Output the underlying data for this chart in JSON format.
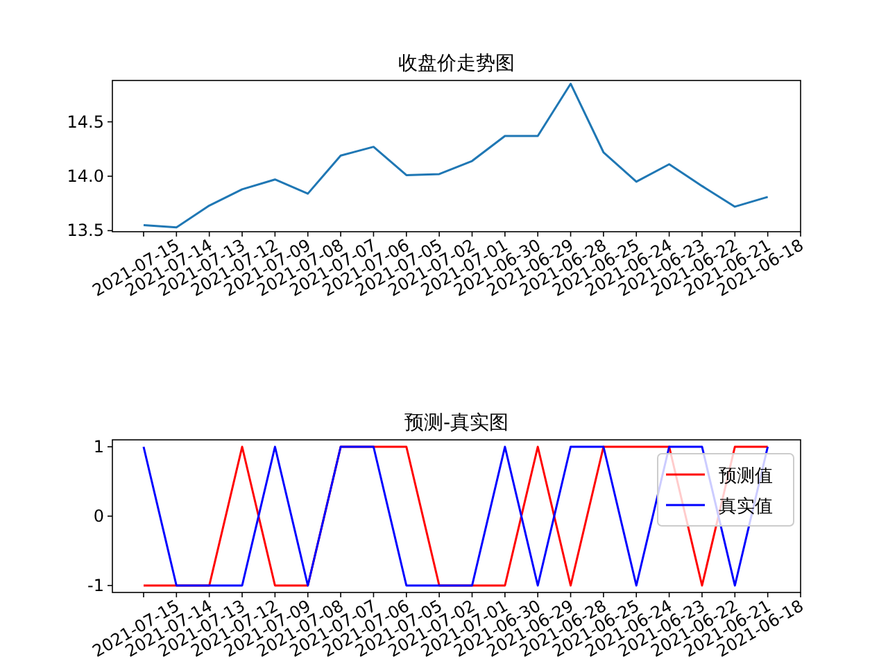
{
  "chart_data": [
    {
      "type": "line",
      "title": "收盘价走势图",
      "categories": [
        "2021-07-15",
        "2021-07-14",
        "2021-07-13",
        "2021-07-12",
        "2021-07-09",
        "2021-07-08",
        "2021-07-07",
        "2021-07-06",
        "2021-07-05",
        "2021-07-02",
        "2021-07-01",
        "2021-06-30",
        "2021-06-29",
        "2021-06-28",
        "2021-06-25",
        "2021-06-24",
        "2021-06-23",
        "2021-06-22",
        "2021-06-21",
        "2021-06-18"
      ],
      "series": [
        {
          "color": "#1f77b4",
          "values": [
            13.55,
            13.53,
            13.73,
            13.88,
            13.97,
            13.84,
            14.19,
            14.27,
            14.01,
            14.02,
            14.14,
            14.37,
            14.37,
            14.85,
            14.22,
            13.95,
            14.11,
            13.91,
            13.72,
            13.81
          ]
        }
      ],
      "ylim": [
        13.49,
        14.88
      ],
      "yticks": [
        {
          "value": 13.5,
          "label": "13.5"
        },
        {
          "value": 14.0,
          "label": "14.0"
        },
        {
          "value": 14.5,
          "label": "14.5"
        }
      ],
      "grid": false,
      "legend": false
    },
    {
      "type": "line",
      "title": "预测-真实图",
      "categories": [
        "2021-07-15",
        "2021-07-14",
        "2021-07-13",
        "2021-07-12",
        "2021-07-09",
        "2021-07-08",
        "2021-07-07",
        "2021-07-06",
        "2021-07-05",
        "2021-07-02",
        "2021-07-01",
        "2021-06-30",
        "2021-06-29",
        "2021-06-28",
        "2021-06-25",
        "2021-06-24",
        "2021-06-23",
        "2021-06-22",
        "2021-06-21",
        "2021-06-18"
      ],
      "series": [
        {
          "name": "预测值",
          "color": "#ff0000",
          "values": [
            -1,
            -1,
            -1,
            1,
            -1,
            -1,
            1,
            1,
            1,
            -1,
            -1,
            -1,
            1,
            -1,
            1,
            1,
            1,
            -1,
            1,
            1
          ]
        },
        {
          "name": "真实值",
          "color": "#0000ff",
          "values": [
            1,
            -1,
            -1,
            -1,
            1,
            -1,
            1,
            1,
            -1,
            -1,
            -1,
            1,
            -1,
            1,
            1,
            -1,
            1,
            1,
            -1,
            1
          ]
        }
      ],
      "ylim": [
        -1.1,
        1.1
      ],
      "yticks": [
        -1,
        0,
        1
      ],
      "grid": false,
      "legend": "top right"
    }
  ]
}
